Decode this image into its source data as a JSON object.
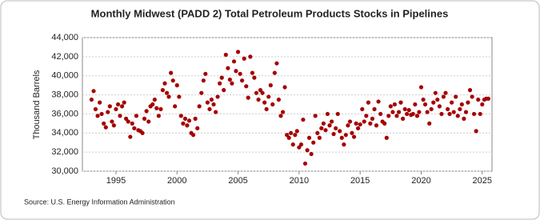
{
  "chart_data": {
    "type": "scatter",
    "title": "Monthly Midwest (PADD 2) Total Petroleum Products Stocks in Pipelines",
    "y_label": "Thousand Barrels",
    "source": "Source: U.S. Energy Information Administration",
    "grid": true,
    "xlim": [
      1992.25,
      2025.8
    ],
    "ylim": [
      30000,
      44000
    ],
    "xticks": [
      1995,
      2000,
      2005,
      2010,
      2015,
      2020,
      2025
    ],
    "yticks": [
      {
        "value": 30000,
        "label": "30,000"
      },
      {
        "value": 32000,
        "label": "32,000"
      },
      {
        "value": 34000,
        "label": "34,000"
      },
      {
        "value": 36000,
        "label": "36,000"
      },
      {
        "value": 38000,
        "label": "38,000"
      },
      {
        "value": 40000,
        "label": "40,000"
      },
      {
        "value": 42000,
        "label": "42,000"
      },
      {
        "value": 44000,
        "label": "44,000"
      }
    ],
    "series": [
      {
        "name": "Stocks",
        "color": "#a50000",
        "x": [
          1993,
          1993.17,
          1993.33,
          1993.5,
          1993.67,
          1993.83,
          1994,
          1994.17,
          1994.33,
          1994.5,
          1994.67,
          1994.83,
          1995,
          1995.17,
          1995.33,
          1995.5,
          1995.67,
          1995.83,
          1996,
          1996.17,
          1996.33,
          1996.5,
          1996.67,
          1996.83,
          1997,
          1997.17,
          1997.33,
          1997.5,
          1997.67,
          1997.83,
          1998,
          1998.17,
          1998.33,
          1998.5,
          1998.67,
          1998.83,
          1999,
          1999.17,
          1999.33,
          1999.5,
          1999.67,
          1999.83,
          2000,
          2000.17,
          2000.33,
          2000.5,
          2000.67,
          2000.83,
          2001,
          2001.17,
          2001.33,
          2001.5,
          2001.67,
          2001.83,
          2002,
          2002.17,
          2002.33,
          2002.5,
          2002.67,
          2002.83,
          2003,
          2003.17,
          2003.33,
          2003.5,
          2003.67,
          2003.83,
          2004,
          2004.17,
          2004.33,
          2004.5,
          2004.67,
          2004.83,
          2005,
          2005.17,
          2005.33,
          2005.5,
          2005.67,
          2005.83,
          2006,
          2006.17,
          2006.33,
          2006.5,
          2006.67,
          2006.83,
          2007,
          2007.17,
          2007.33,
          2007.5,
          2007.67,
          2007.83,
          2008,
          2008.17,
          2008.33,
          2008.5,
          2008.67,
          2008.83,
          2009,
          2009.17,
          2009.33,
          2009.5,
          2009.67,
          2009.83,
          2010,
          2010.17,
          2010.33,
          2010.5,
          2010.67,
          2010.83,
          2011,
          2011.17,
          2011.33,
          2011.5,
          2011.67,
          2011.83,
          2012,
          2012.17,
          2012.33,
          2012.5,
          2012.67,
          2012.83,
          2013,
          2013.17,
          2013.33,
          2013.5,
          2013.67,
          2013.83,
          2014,
          2014.17,
          2014.33,
          2014.5,
          2014.67,
          2014.83,
          2015,
          2015.17,
          2015.33,
          2015.5,
          2015.67,
          2015.83,
          2016,
          2016.17,
          2016.33,
          2016.5,
          2016.67,
          2016.83,
          2017,
          2017.17,
          2017.33,
          2017.5,
          2017.67,
          2017.83,
          2018,
          2018.17,
          2018.33,
          2018.5,
          2018.67,
          2018.83,
          2019,
          2019.17,
          2019.33,
          2019.5,
          2019.67,
          2019.83,
          2020,
          2020.17,
          2020.33,
          2020.5,
          2020.67,
          2020.83,
          2021,
          2021.17,
          2021.33,
          2021.5,
          2021.67,
          2021.83,
          2022,
          2022.17,
          2022.33,
          2022.5,
          2022.67,
          2022.83,
          2023,
          2023.17,
          2023.33,
          2023.5,
          2023.67,
          2023.83,
          2024,
          2024.17,
          2024.33,
          2024.5,
          2024.67,
          2024.83,
          2025,
          2025.17,
          2025.33,
          2025.5
        ],
        "values": [
          37500,
          38400,
          36500,
          35800,
          37200,
          36000,
          35000,
          34600,
          36200,
          36800,
          35200,
          34800,
          36500,
          37000,
          35800,
          36800,
          37200,
          35500,
          35200,
          33600,
          35000,
          34500,
          35800,
          34300,
          34200,
          34000,
          35500,
          36300,
          35200,
          36800,
          37000,
          37500,
          36600,
          35800,
          36500,
          38500,
          39200,
          38200,
          37800,
          40300,
          39500,
          36800,
          39000,
          37800,
          35800,
          35000,
          35500,
          34800,
          35300,
          34000,
          33800,
          35500,
          34500,
          36800,
          38200,
          39500,
          40200,
          37200,
          36500,
          37500,
          37000,
          36200,
          37800,
          39200,
          39800,
          38500,
          42200,
          40800,
          39600,
          39200,
          41500,
          40500,
          42500,
          40200,
          39500,
          41800,
          38900,
          37700,
          42000,
          40300,
          39800,
          38200,
          37500,
          38500,
          38200,
          37200,
          36500,
          37800,
          39000,
          37000,
          40300,
          41300,
          37500,
          35800,
          36200,
          38800,
          33800,
          33500,
          34000,
          32800,
          33800,
          34200,
          32500,
          32800,
          35400,
          30800,
          32200,
          33500,
          31800,
          33000,
          35800,
          34000,
          33500,
          34500,
          35000,
          34300,
          36000,
          34800,
          35200,
          33900,
          34500,
          36000,
          34200,
          33500,
          32800,
          33800,
          34800,
          35200,
          34000,
          33600,
          35000,
          34500,
          34900,
          36500,
          35200,
          35800,
          37200,
          35000,
          35500,
          36500,
          34800,
          37300,
          36000,
          35200,
          35000,
          33500,
          35800,
          36800,
          36200,
          37000,
          35800,
          36200,
          37200,
          35500,
          36500,
          36000,
          36400,
          35900,
          36000,
          37000,
          35800,
          36200,
          38800,
          37500,
          37000,
          36200,
          35000,
          36500,
          37200,
          38200,
          37500,
          36800,
          36000,
          37800,
          38200,
          36500,
          36000,
          37200,
          36200,
          37800,
          35800,
          36500,
          37000,
          35500,
          36200,
          37200,
          38500,
          37800,
          36000,
          34200,
          37500,
          36000,
          37000,
          37500,
          37600,
          37600
        ]
      }
    ]
  }
}
